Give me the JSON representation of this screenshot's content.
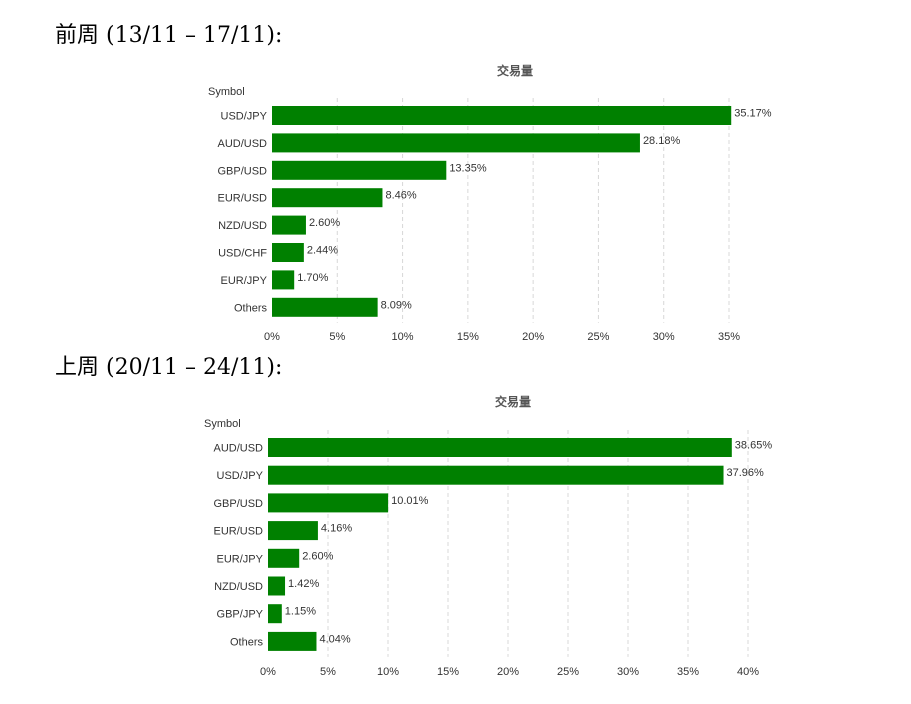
{
  "headings": {
    "previous_week": "前周 (13/11 – 17/11):",
    "last_week": "上周 (20/11 – 24/11):"
  },
  "chart_data": [
    {
      "type": "bar",
      "orientation": "horizontal",
      "title": "交易量",
      "y_header": "Symbol",
      "categories": [
        "USD/JPY",
        "AUD/USD",
        "GBP/USD",
        "EUR/USD",
        "NZD/USD",
        "USD/CHF",
        "EUR/JPY",
        "Others"
      ],
      "values": [
        35.17,
        28.18,
        13.35,
        8.46,
        2.6,
        2.44,
        1.7,
        8.09
      ],
      "value_labels": [
        "35.17%",
        "28.18%",
        "13.35%",
        "8.46%",
        "2.60%",
        "2.44%",
        "1.70%",
        "8.09%"
      ],
      "xlim": [
        0,
        35
      ],
      "xticks": [
        "0%",
        "5%",
        "10%",
        "15%",
        "20%",
        "25%",
        "30%",
        "35%"
      ],
      "grid": true,
      "bar_color": "#008000"
    },
    {
      "type": "bar",
      "orientation": "horizontal",
      "title": "交易量",
      "y_header": "Symbol",
      "categories": [
        "AUD/USD",
        "USD/JPY",
        "GBP/USD",
        "EUR/USD",
        "EUR/JPY",
        "NZD/USD",
        "GBP/JPY",
        "Others"
      ],
      "values": [
        38.65,
        37.96,
        10.01,
        4.16,
        2.6,
        1.42,
        1.15,
        4.04
      ],
      "value_labels": [
        "38.65%",
        "37.96%",
        "10.01%",
        "4.16%",
        "2.60%",
        "1.42%",
        "1.15%",
        "4.04%"
      ],
      "xlim": [
        0,
        40
      ],
      "xticks": [
        "0%",
        "5%",
        "10%",
        "15%",
        "20%",
        "25%",
        "30%",
        "35%",
        "40%"
      ],
      "grid": true,
      "bar_color": "#008000"
    }
  ]
}
